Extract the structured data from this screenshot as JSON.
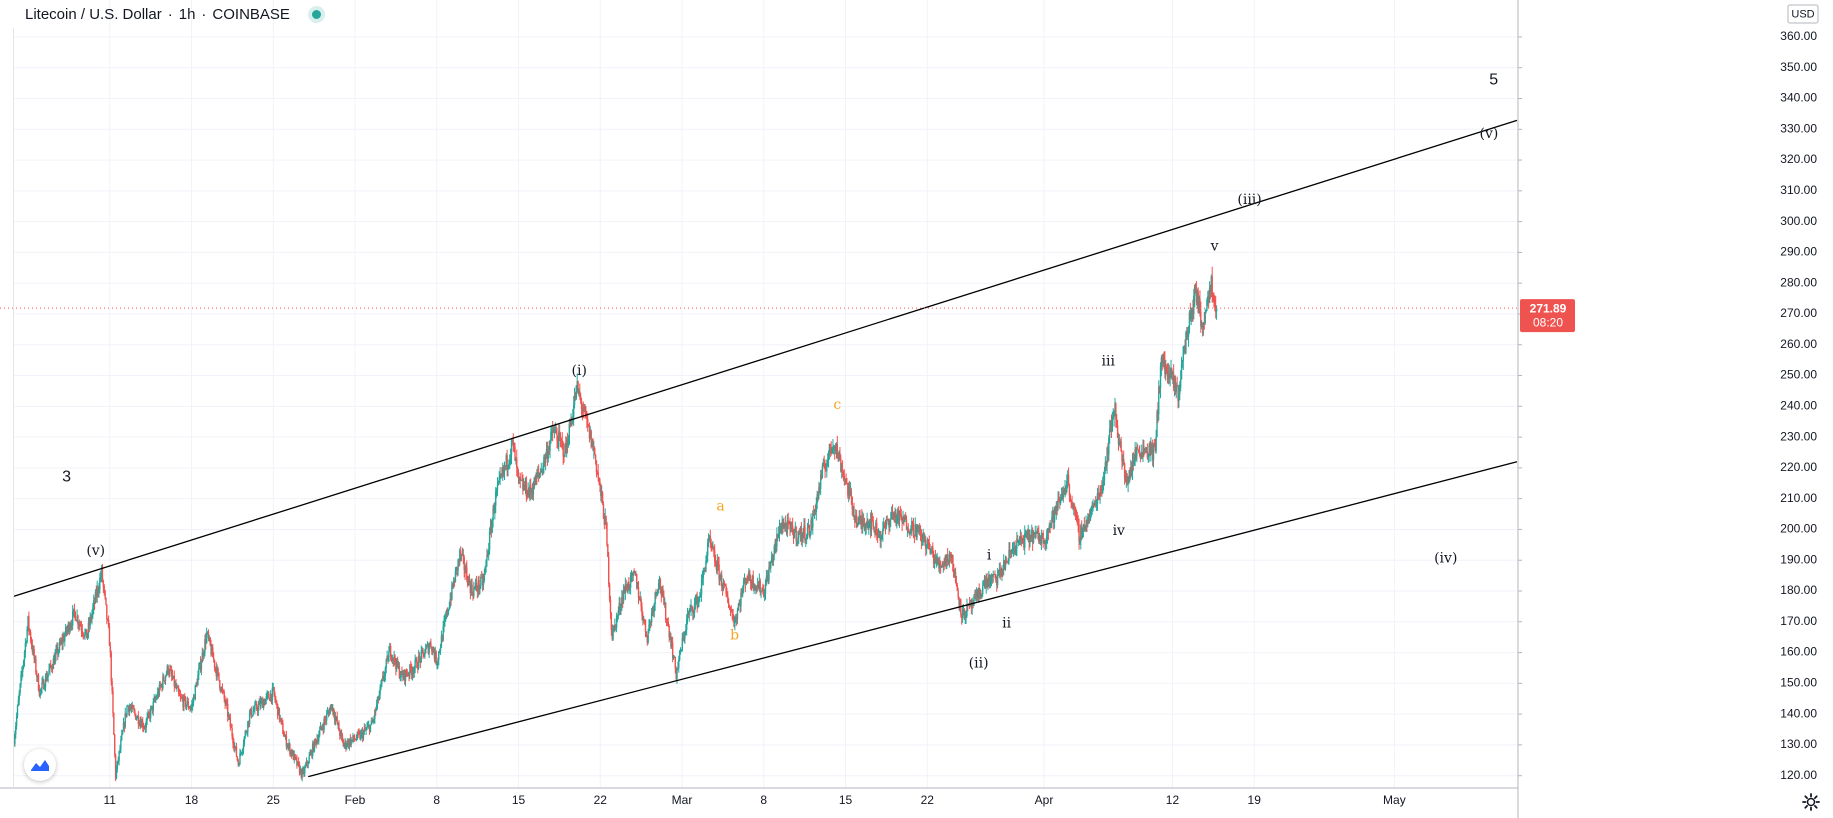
{
  "header": {
    "symbol": "Litecoin / U.S. Dollar",
    "interval": "1h",
    "exchange": "COINBASE",
    "separator": "·"
  },
  "price_axis": {
    "currency": "USD",
    "last_price": "271.89",
    "countdown": "08:20"
  },
  "colors": {
    "up": "#26a69a",
    "down": "#ef5350",
    "price_line": "#ef5350",
    "wave_orange": "#f5a623",
    "trendline": "#000000"
  },
  "icons": [
    "tradingview-logo-icon",
    "settings-icon"
  ],
  "chart_data": {
    "type": "candlestick",
    "grid": true,
    "ylim": [
      116,
      372
    ],
    "y_ticks": [
      120,
      130,
      140,
      150,
      160,
      170,
      180,
      190,
      200,
      210,
      220,
      230,
      240,
      250,
      260,
      270,
      280,
      290,
      300,
      310,
      320,
      330,
      340,
      350,
      360
    ],
    "x_ticks": [
      {
        "label": "11",
        "day": 11
      },
      {
        "label": "18",
        "day": 18
      },
      {
        "label": "25",
        "day": 25
      },
      {
        "label": "Feb",
        "day": 32
      },
      {
        "label": "8",
        "day": 39
      },
      {
        "label": "15",
        "day": 46
      },
      {
        "label": "22",
        "day": 53
      },
      {
        "label": "Mar",
        "day": 60
      },
      {
        "label": "8",
        "day": 67
      },
      {
        "label": "15",
        "day": 74
      },
      {
        "label": "22",
        "day": 81
      },
      {
        "label": "Apr",
        "day": 91
      },
      {
        "label": "12",
        "day": 102
      },
      {
        "label": "19",
        "day": 109
      },
      {
        "label": "May",
        "day": 121
      }
    ],
    "xlim": [
      2.8,
      131.5
    ],
    "price_path": [
      [
        2.8,
        132
      ],
      [
        4,
        170
      ],
      [
        5,
        147
      ],
      [
        8,
        173
      ],
      [
        9,
        165
      ],
      [
        10.3,
        186
      ],
      [
        11,
        163
      ],
      [
        11.5,
        120
      ],
      [
        12.5,
        143
      ],
      [
        14,
        136
      ],
      [
        16,
        155
      ],
      [
        17,
        145
      ],
      [
        18,
        142
      ],
      [
        19.3,
        166
      ],
      [
        20,
        156
      ],
      [
        21,
        142
      ],
      [
        22,
        124
      ],
      [
        23,
        140
      ],
      [
        25,
        147
      ],
      [
        26,
        132
      ],
      [
        27.5,
        120
      ],
      [
        28.5,
        130
      ],
      [
        30,
        143
      ],
      [
        31,
        130
      ],
      [
        32.5,
        133
      ],
      [
        33.5,
        137
      ],
      [
        35,
        161
      ],
      [
        36,
        152
      ],
      [
        37,
        155
      ],
      [
        38.5,
        163
      ],
      [
        39,
        157
      ],
      [
        40,
        175
      ],
      [
        41,
        192
      ],
      [
        42,
        180
      ],
      [
        43,
        183
      ],
      [
        44,
        210
      ],
      [
        45.5,
        228
      ],
      [
        46,
        215
      ],
      [
        47,
        212
      ],
      [
        48,
        220
      ],
      [
        49,
        232
      ],
      [
        50,
        225
      ],
      [
        51,
        246
      ],
      [
        52.5,
        225
      ],
      [
        53.5,
        200
      ],
      [
        54,
        165
      ],
      [
        55,
        180
      ],
      [
        56,
        185
      ],
      [
        57,
        165
      ],
      [
        58,
        184
      ],
      [
        59,
        165
      ],
      [
        59.5,
        153
      ],
      [
        60.5,
        172
      ],
      [
        61.5,
        178
      ],
      [
        62.3,
        196
      ],
      [
        63.5,
        182
      ],
      [
        64.5,
        170
      ],
      [
        65.5,
        185
      ],
      [
        67,
        180
      ],
      [
        68.5,
        202
      ],
      [
        70,
        198
      ],
      [
        71,
        200
      ],
      [
        72,
        218
      ],
      [
        73,
        229
      ],
      [
        74,
        216
      ],
      [
        75,
        202
      ],
      [
        76,
        203
      ],
      [
        77,
        198
      ],
      [
        78,
        205
      ],
      [
        80,
        200
      ],
      [
        81,
        195
      ],
      [
        82,
        188
      ],
      [
        83,
        192
      ],
      [
        84,
        172
      ],
      [
        85,
        176
      ],
      [
        86,
        183
      ],
      [
        87,
        184
      ],
      [
        88.5,
        195
      ],
      [
        90,
        198
      ],
      [
        91,
        197
      ],
      [
        92,
        206
      ],
      [
        93,
        216
      ],
      [
        94,
        198
      ],
      [
        95,
        205
      ],
      [
        96,
        215
      ],
      [
        97,
        240
      ],
      [
        98,
        215
      ],
      [
        99,
        226
      ],
      [
        100,
        226
      ],
      [
        100.5,
        225
      ],
      [
        101,
        255
      ],
      [
        102,
        248
      ],
      [
        102.5,
        244
      ],
      [
        103,
        259
      ],
      [
        104,
        278
      ],
      [
        104.5,
        266
      ],
      [
        105.3,
        281
      ],
      [
        105.8,
        271.89
      ]
    ],
    "last_price": 271.89,
    "trendlines": [
      {
        "from": [
          2.8,
          178.3
        ],
        "to": [
          131.5,
          332.9
        ]
      },
      {
        "from": [
          28,
          119.7
        ],
        "to": [
          131.5,
          222.0
        ]
      }
    ],
    "annotations": [
      {
        "text": "3",
        "x": 7.3,
        "y": 217,
        "style": "large"
      },
      {
        "text": "(v)",
        "x": 9.8,
        "y": 193,
        "style": "wave"
      },
      {
        "text": "(i)",
        "x": 51.2,
        "y": 251.5,
        "style": "wave"
      },
      {
        "text": "a",
        "x": 63.3,
        "y": 207.5,
        "style": "orange"
      },
      {
        "text": "b",
        "x": 64.5,
        "y": 165.5,
        "style": "orange"
      },
      {
        "text": "c",
        "x": 73.3,
        "y": 240.5,
        "style": "orange"
      },
      {
        "text": "i",
        "x": 86.3,
        "y": 191.5,
        "style": "wave"
      },
      {
        "text": "ii",
        "x": 87.8,
        "y": 169.5,
        "style": "wave"
      },
      {
        "text": "(ii)",
        "x": 85.4,
        "y": 156.5,
        "style": "wave"
      },
      {
        "text": "iv",
        "x": 97.4,
        "y": 199.5,
        "style": "wave"
      },
      {
        "text": "iii",
        "x": 96.5,
        "y": 254.5,
        "style": "wave"
      },
      {
        "text": "v",
        "x": 105.6,
        "y": 292,
        "style": "wave"
      },
      {
        "text": "(iii)",
        "x": 108.6,
        "y": 307,
        "style": "wave"
      },
      {
        "text": "(iv)",
        "x": 125.4,
        "y": 190.5,
        "style": "wave"
      },
      {
        "text": "(v)",
        "x": 129.1,
        "y": 328.5,
        "style": "wave"
      },
      {
        "text": "5",
        "x": 129.5,
        "y": 346,
        "style": "large"
      }
    ]
  }
}
